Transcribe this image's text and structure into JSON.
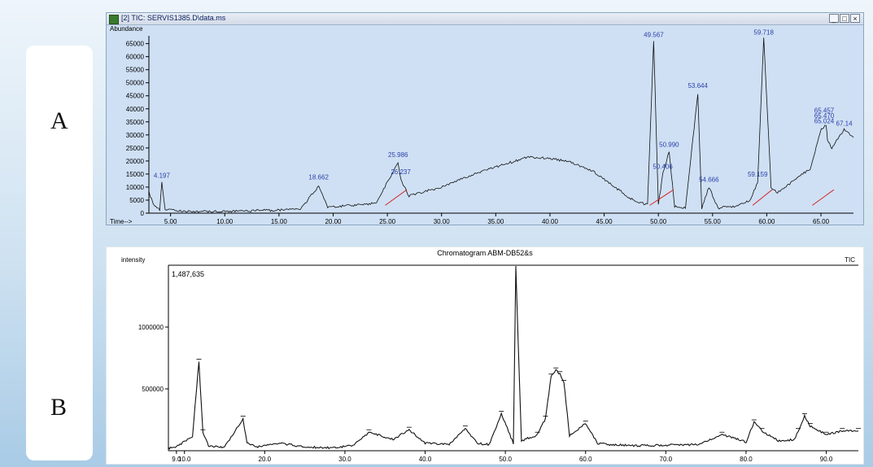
{
  "labels": {
    "a": "A",
    "b": "B"
  },
  "window": {
    "title": "[2] TIC: SERVIS1385.D\\data.ms",
    "minimize": "_",
    "maximize": "□",
    "close": "×"
  },
  "chart_data": [
    {
      "type": "line",
      "ylabel": "Abundance",
      "xlabel": "Time-->",
      "xlim": [
        3.0,
        68.0
      ],
      "ylim": [
        0,
        68000
      ],
      "y_ticks": [
        "0",
        "5000",
        "10000",
        "15000",
        "20000",
        "25000",
        "30000",
        "35000",
        "40000",
        "45000",
        "50000",
        "55000",
        "60000",
        "65000"
      ],
      "x_ticks": [
        "5.00",
        "10.00",
        "15.00",
        "20.00",
        "25.00",
        "30.00",
        "35.00",
        "40.00",
        "45.00",
        "50.00",
        "55.00",
        "60.00",
        "65.00"
      ],
      "grid": false,
      "series": [
        {
          "x": [
            3.0,
            3.5,
            4.0,
            4.197,
            4.5,
            6.0,
            8.0,
            10.5,
            12.5,
            15.0,
            17.0,
            18.662,
            19.5,
            22.0,
            24.0,
            25.986,
            26.237,
            27.0,
            30.0,
            33.0,
            36.0,
            38.0,
            40.0,
            42.0,
            44.0,
            46.0,
            48.0,
            49.0,
            49.567,
            50.0,
            50.406,
            50.99,
            51.5,
            52.5,
            53.644,
            54.0,
            54.666,
            55.5,
            57.0,
            58.5,
            59.159,
            59.718,
            60.4,
            61.0,
            62.0,
            64.0,
            65.024,
            65.47,
            65.6,
            66.0,
            67.14,
            68.0
          ],
          "y": [
            8000,
            2500,
            1500,
            12000,
            1500,
            800,
            700,
            800,
            900,
            1200,
            1500,
            10500,
            2500,
            3000,
            4000,
            19500,
            13000,
            6500,
            10000,
            15000,
            19000,
            21500,
            21000,
            19500,
            16000,
            10000,
            4000,
            3500,
            66000,
            3000,
            15000,
            23500,
            2500,
            2000,
            46000,
            2000,
            10000,
            2000,
            2500,
            5000,
            12000,
            67000,
            10000,
            8000,
            11000,
            17000,
            32000,
            34000,
            28000,
            25000,
            32000,
            29000
          ]
        }
      ],
      "annotations": [
        "4.197",
        "18.662",
        "25.986",
        "26.237",
        "49.567",
        "50.406",
        "50.990",
        "53.644",
        "54.666",
        "59.159",
        "59.718",
        "65.024",
        "65.457",
        "65.470",
        "67.14"
      ]
    },
    {
      "type": "line",
      "title": "Chromatogram ABM-DB52&s",
      "ylabel": "intensity",
      "series_label": "TIC",
      "max_label": "1,487,635",
      "xlim": [
        8.0,
        94.0
      ],
      "ylim": [
        0,
        1500000
      ],
      "y_ticks": [
        "500000",
        "1000000"
      ],
      "x_ticks": [
        "9.0",
        "10.0",
        "20.0",
        "30.0",
        "40.0",
        "50.0",
        "60.0",
        "70.0",
        "80.0",
        "90.0"
      ],
      "series": [
        {
          "x": [
            8.0,
            9.0,
            11.0,
            11.8,
            12.3,
            13.0,
            15.0,
            17.3,
            17.8,
            19.0,
            22.0,
            25.0,
            28.0,
            31.0,
            33.0,
            36.0,
            38.0,
            40.0,
            43.0,
            45.0,
            46.5,
            48.0,
            49.5,
            51.0,
            51.3,
            52.0,
            54.0,
            55.0,
            55.7,
            56.3,
            56.8,
            57.3,
            58.0,
            60.0,
            61.5,
            63.0,
            66.0,
            70.0,
            74.0,
            77.0,
            80.0,
            81.0,
            82.0,
            84.0,
            86.0,
            86.5,
            87.3,
            88.0,
            90.0,
            92.0,
            94.0
          ],
          "y": [
            20000,
            30000,
            120000,
            720000,
            150000,
            40000,
            30000,
            260000,
            60000,
            30000,
            60000,
            30000,
            25000,
            40000,
            150000,
            90000,
            170000,
            60000,
            50000,
            180000,
            60000,
            50000,
            300000,
            60000,
            1487635,
            80000,
            130000,
            260000,
            600000,
            650000,
            620000,
            550000,
            120000,
            220000,
            60000,
            50000,
            40000,
            45000,
            50000,
            130000,
            70000,
            230000,
            160000,
            80000,
            90000,
            160000,
            280000,
            200000,
            130000,
            160000,
            160000
          ]
        }
      ]
    }
  ]
}
